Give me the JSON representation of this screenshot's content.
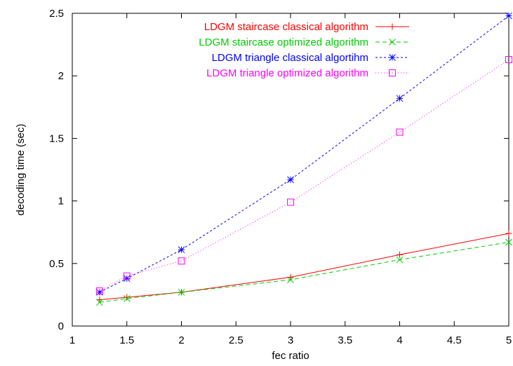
{
  "chart_data": {
    "type": "line",
    "xlabel": "fec  ratio",
    "ylabel": "decoding time (sec)",
    "xlim": [
      1,
      5
    ],
    "ylim": [
      0,
      2.5
    ],
    "xticks": [
      "1",
      "1.5",
      "2",
      "2.5",
      "3",
      "3.5",
      "4",
      "4.5",
      "5"
    ],
    "yticks": [
      "0",
      "0.5",
      "1",
      "1.5",
      "2",
      "2.5"
    ],
    "grid": false,
    "legend_position": "top-right",
    "series": [
      {
        "name": "LDGM staircase classical algorithm",
        "color": "#ff0000",
        "dash": "solid",
        "marker": "plus",
        "x": [
          1.25,
          1.5,
          2,
          3,
          4,
          5
        ],
        "y": [
          0.21,
          0.23,
          0.27,
          0.39,
          0.57,
          0.74
        ]
      },
      {
        "name": "LDGM staircase optimized algorithm",
        "color": "#00cc00",
        "dash": "dashed",
        "marker": "cross",
        "x": [
          1.25,
          1.5,
          2,
          3,
          4,
          5
        ],
        "y": [
          0.19,
          0.22,
          0.27,
          0.37,
          0.53,
          0.67
        ]
      },
      {
        "name": "LDGM triangle classical algortihm",
        "color": "#0000ff",
        "dash": "short-dashed",
        "marker": "asterisk",
        "x": [
          1.25,
          1.5,
          2,
          3,
          4,
          5
        ],
        "y": [
          0.27,
          0.38,
          0.61,
          1.17,
          1.82,
          2.48
        ]
      },
      {
        "name": "LDGM triangle optimized algorithm",
        "color": "#ff00ff",
        "dash": "dotted",
        "marker": "square",
        "x": [
          1.25,
          1.5,
          2,
          3,
          4,
          5
        ],
        "y": [
          0.28,
          0.4,
          0.52,
          0.99,
          1.55,
          2.13
        ]
      }
    ]
  }
}
